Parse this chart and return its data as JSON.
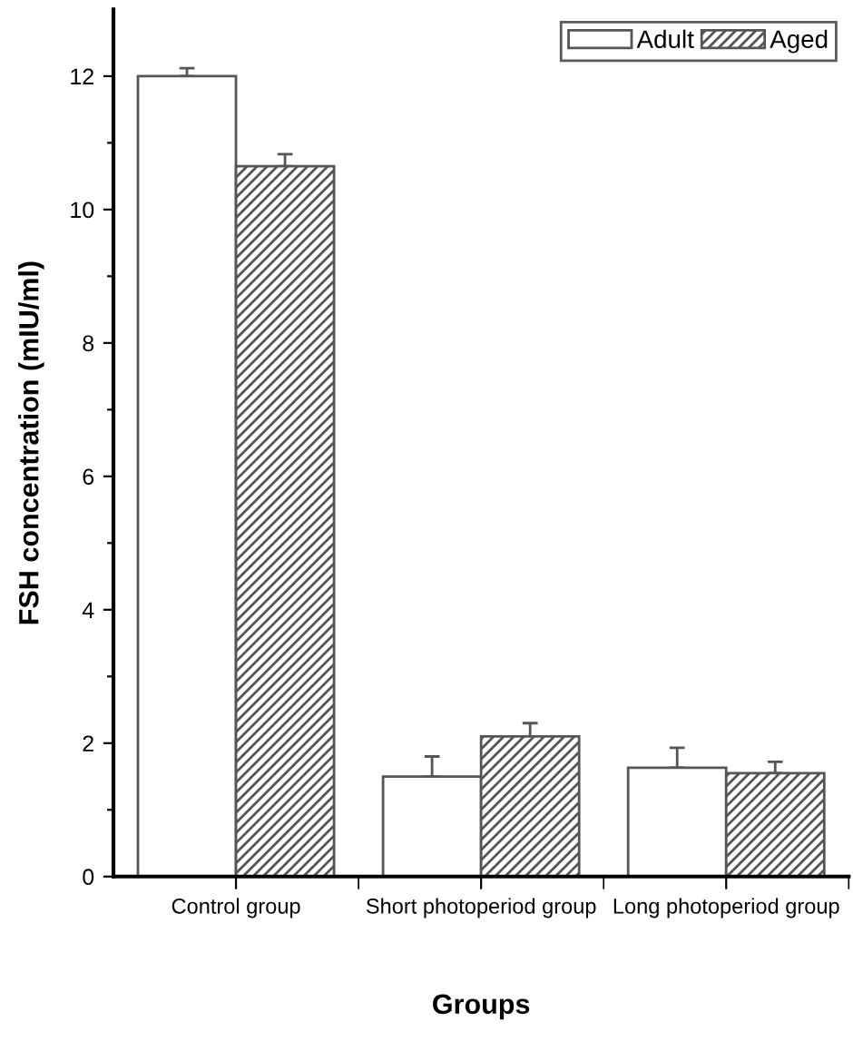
{
  "chart_data": {
    "type": "bar",
    "xlabel": "Groups",
    "ylabel": "FSH concentration (mIU/ml)",
    "categories": [
      "Control group",
      "Short photoperiod group",
      "Long photoperiod group"
    ],
    "series": [
      {
        "name": "Adult",
        "color": "#ffffff",
        "values": [
          12.0,
          1.5,
          1.63
        ],
        "errors": [
          [
            12.0,
            12.12
          ],
          [
            1.5,
            1.8
          ],
          [
            1.63,
            1.93
          ]
        ]
      },
      {
        "name": "Aged",
        "color": "#555555",
        "values": [
          10.65,
          2.1,
          1.55
        ],
        "errors": [
          [
            10.65,
            10.83
          ],
          [
            2.1,
            2.3
          ],
          [
            1.55,
            1.72
          ]
        ]
      }
    ],
    "ylim": [
      0,
      13
    ],
    "yticks": [
      0,
      {
        "value": 1,
        "label": null
      },
      2,
      {
        "value": 3,
        "label": null
      },
      4,
      {
        "value": 5,
        "label": null
      },
      6,
      {
        "value": 7,
        "label": null
      },
      8,
      {
        "value": 9,
        "label": null
      },
      10,
      {
        "value": 11,
        "label": null
      },
      12
    ],
    "grid": false,
    "legend": "top right"
  }
}
